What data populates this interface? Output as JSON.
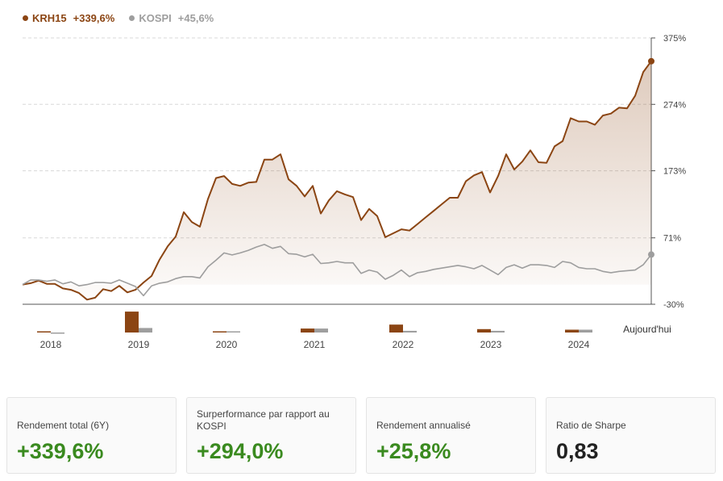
{
  "legend": [
    {
      "name": "KRH15",
      "value": "+339,6%",
      "color": "#8b4513"
    },
    {
      "name": "KOSPI",
      "value": "+45,6%",
      "color": "#9e9e9e"
    }
  ],
  "chart_data": {
    "type": "line",
    "y_ticks": [
      "375%",
      "274%",
      "173%",
      "71%",
      "-30%"
    ],
    "y_tick_values": [
      375,
      274,
      173,
      71,
      -30
    ],
    "ylim": [
      -30,
      375
    ],
    "x_ticks": [
      "2018",
      "2019",
      "2020",
      "2021",
      "2022",
      "2023",
      "2024",
      "Aujourd'hui"
    ],
    "grid": true,
    "series": [
      {
        "name": "KRH15",
        "color": "#8b4513",
        "values": [
          0,
          2,
          6,
          1,
          1,
          -6,
          -8,
          -13,
          -23,
          -20,
          -7,
          -10,
          -2,
          -12,
          -8,
          3,
          13,
          38,
          58,
          73,
          110,
          95,
          88,
          130,
          162,
          165,
          153,
          150,
          155,
          156,
          190,
          190,
          198,
          160,
          150,
          134,
          150,
          108,
          128,
          142,
          137,
          133,
          98,
          115,
          104,
          72,
          78,
          84,
          82,
          92,
          102,
          112,
          122,
          132,
          132,
          157,
          166,
          171,
          140,
          165,
          198,
          175,
          187,
          204,
          186,
          185,
          210,
          218,
          253,
          248,
          248,
          243,
          257,
          260,
          269,
          268,
          287,
          323,
          339.6
        ]
      },
      {
        "name": "KOSPI",
        "color": "#9e9e9e",
        "values": [
          0,
          7,
          7,
          5,
          7,
          1,
          4,
          -2,
          0,
          3,
          3,
          2,
          7,
          2,
          -3,
          -17,
          -2,
          2,
          4,
          9,
          12,
          12,
          10,
          27,
          37,
          48,
          45,
          48,
          52,
          57,
          61,
          55,
          58,
          47,
          46,
          42,
          46,
          32,
          33,
          35,
          33,
          33,
          17,
          22,
          19,
          8,
          14,
          22,
          12,
          18,
          20,
          23,
          25,
          27,
          29,
          27,
          24,
          29,
          22,
          15,
          26,
          30,
          25,
          30,
          30,
          29,
          26,
          35,
          33,
          26,
          24,
          24,
          20,
          18,
          20,
          21,
          22,
          30,
          45.6
        ]
      }
    ],
    "bars": [
      {
        "year": "2018",
        "KRH15": 2,
        "KOSPI": -1
      },
      {
        "year": "2019",
        "KRH15": 37,
        "KOSPI": 8
      },
      {
        "year": "2020",
        "KRH15": 1,
        "KOSPI": 1
      },
      {
        "year": "2021",
        "KRH15": 7,
        "KOSPI": 7
      },
      {
        "year": "2022",
        "KRH15": 14,
        "KOSPI": 3
      },
      {
        "year": "2023",
        "KRH15": 6,
        "KOSPI": 3
      },
      {
        "year": "2024",
        "KRH15": 5,
        "KOSPI": 5
      }
    ]
  },
  "cards": [
    {
      "label": "Rendement total (6Y)",
      "value": "+339,6%",
      "color": "#3a8a1f"
    },
    {
      "label": "Surperformance par rapport au KOSPI",
      "value": "+294,0%",
      "color": "#3a8a1f"
    },
    {
      "label": "Rendement annualisé",
      "value": "+25,8%",
      "color": "#3a8a1f"
    },
    {
      "label": "Ratio de Sharpe",
      "value": "0,83",
      "color": "#222222"
    }
  ]
}
